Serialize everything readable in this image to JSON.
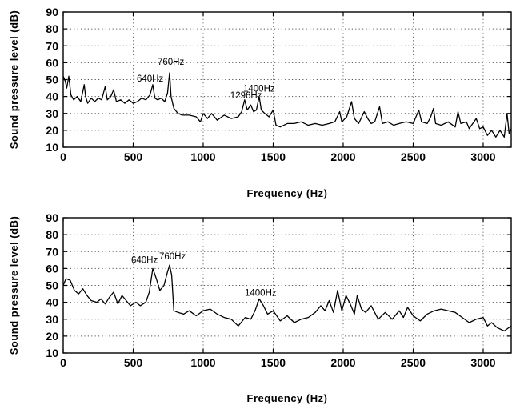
{
  "chart_data": [
    {
      "type": "line",
      "xlabel": "Frequency (Hz)",
      "ylabel": "Sound pressure level (dB)",
      "xlim": [
        0,
        3200
      ],
      "ylim": [
        10,
        90
      ],
      "xticks": [
        0,
        500,
        1000,
        1500,
        2000,
        2500,
        3000
      ],
      "yticks": [
        10,
        20,
        30,
        40,
        50,
        60,
        70,
        80,
        90
      ],
      "grid": true,
      "annotations": [
        {
          "text": "760Hz",
          "x": 760,
          "y": 55
        },
        {
          "text": "640Hz",
          "x": 640,
          "y": 47
        },
        {
          "text": "1400Hz",
          "x": 1400,
          "y": 40
        },
        {
          "text": "1296Hz",
          "x": 1296,
          "y": 38
        }
      ],
      "series": [
        {
          "values": [
            [
              0,
              52
            ],
            [
              15,
              49
            ],
            [
              25,
              45
            ],
            [
              40,
              52
            ],
            [
              55,
              41
            ],
            [
              75,
              38
            ],
            [
              100,
              40
            ],
            [
              125,
              37
            ],
            [
              150,
              47
            ],
            [
              160,
              40
            ],
            [
              175,
              36
            ],
            [
              200,
              39
            ],
            [
              225,
              37
            ],
            [
              250,
              39
            ],
            [
              275,
              38
            ],
            [
              300,
              46
            ],
            [
              315,
              38
            ],
            [
              340,
              40
            ],
            [
              360,
              44
            ],
            [
              380,
              37
            ],
            [
              410,
              38
            ],
            [
              440,
              36
            ],
            [
              470,
              38
            ],
            [
              500,
              36
            ],
            [
              530,
              37
            ],
            [
              560,
              39
            ],
            [
              590,
              38
            ],
            [
              620,
              41
            ],
            [
              640,
              47
            ],
            [
              655,
              39
            ],
            [
              675,
              38
            ],
            [
              700,
              39
            ],
            [
              725,
              37
            ],
            [
              745,
              42
            ],
            [
              760,
              54
            ],
            [
              770,
              40
            ],
            [
              790,
              33
            ],
            [
              820,
              30
            ],
            [
              850,
              29
            ],
            [
              900,
              29
            ],
            [
              950,
              28
            ],
            [
              980,
              25
            ],
            [
              1000,
              30
            ],
            [
              1030,
              27
            ],
            [
              1060,
              30
            ],
            [
              1100,
              26
            ],
            [
              1150,
              29
            ],
            [
              1200,
              27
            ],
            [
              1250,
              28
            ],
            [
              1275,
              31
            ],
            [
              1296,
              38
            ],
            [
              1315,
              32
            ],
            [
              1340,
              35
            ],
            [
              1360,
              31
            ],
            [
              1380,
              32
            ],
            [
              1400,
              40
            ],
            [
              1415,
              32
            ],
            [
              1440,
              30
            ],
            [
              1470,
              28
            ],
            [
              1500,
              32
            ],
            [
              1520,
              23
            ],
            [
              1550,
              22
            ],
            [
              1600,
              24
            ],
            [
              1650,
              24
            ],
            [
              1700,
              25
            ],
            [
              1750,
              23
            ],
            [
              1800,
              24
            ],
            [
              1850,
              23
            ],
            [
              1900,
              24
            ],
            [
              1940,
              25
            ],
            [
              1975,
              31
            ],
            [
              1990,
              25
            ],
            [
              2025,
              28
            ],
            [
              2060,
              37
            ],
            [
              2080,
              27
            ],
            [
              2110,
              24
            ],
            [
              2150,
              31
            ],
            [
              2175,
              27
            ],
            [
              2200,
              24
            ],
            [
              2225,
              25
            ],
            [
              2260,
              34
            ],
            [
              2280,
              24
            ],
            [
              2320,
              25
            ],
            [
              2360,
              23
            ],
            [
              2400,
              24
            ],
            [
              2450,
              25
            ],
            [
              2500,
              24
            ],
            [
              2540,
              32
            ],
            [
              2560,
              25
            ],
            [
              2600,
              24
            ],
            [
              2625,
              28
            ],
            [
              2645,
              33
            ],
            [
              2660,
              24
            ],
            [
              2700,
              23
            ],
            [
              2750,
              25
            ],
            [
              2800,
              22
            ],
            [
              2820,
              31
            ],
            [
              2840,
              24
            ],
            [
              2880,
              25
            ],
            [
              2900,
              21
            ],
            [
              2950,
              27
            ],
            [
              2975,
              21
            ],
            [
              3000,
              22
            ],
            [
              3030,
              17
            ],
            [
              3060,
              20
            ],
            [
              3090,
              16
            ],
            [
              3120,
              20
            ],
            [
              3150,
              16
            ],
            [
              3170,
              30
            ],
            [
              3185,
              18
            ],
            [
              3200,
              21
            ]
          ]
        }
      ]
    },
    {
      "type": "line",
      "xlabel": "Frequency (Hz)",
      "ylabel": "Sound pressure level (dB)",
      "xlim": [
        0,
        3200
      ],
      "ylim": [
        10,
        90
      ],
      "xticks": [
        0,
        500,
        1000,
        1500,
        2000,
        2500,
        3000
      ],
      "yticks": [
        10,
        20,
        30,
        40,
        50,
        60,
        70,
        80,
        90
      ],
      "grid": true,
      "annotations": [
        {
          "text": "760Hz",
          "x": 760,
          "y": 63
        },
        {
          "text": "640Hz",
          "x": 640,
          "y": 60
        },
        {
          "text": "1400Hz",
          "x": 1400,
          "y": 42
        }
      ],
      "series": [
        {
          "values": [
            [
              0,
              50
            ],
            [
              20,
              54
            ],
            [
              50,
              53
            ],
            [
              80,
              47
            ],
            [
              110,
              45
            ],
            [
              140,
              48
            ],
            [
              170,
              44
            ],
            [
              200,
              41
            ],
            [
              240,
              40
            ],
            [
              270,
              42
            ],
            [
              300,
              39
            ],
            [
              330,
              43
            ],
            [
              360,
              46
            ],
            [
              390,
              39
            ],
            [
              420,
              44
            ],
            [
              450,
              41
            ],
            [
              480,
              38
            ],
            [
              520,
              40
            ],
            [
              550,
              38
            ],
            [
              590,
              40
            ],
            [
              615,
              46
            ],
            [
              640,
              60
            ],
            [
              665,
              54
            ],
            [
              690,
              47
            ],
            [
              720,
              50
            ],
            [
              745,
              58
            ],
            [
              760,
              62
            ],
            [
              775,
              56
            ],
            [
              790,
              35
            ],
            [
              820,
              34
            ],
            [
              860,
              33
            ],
            [
              900,
              35
            ],
            [
              950,
              32
            ],
            [
              1000,
              35
            ],
            [
              1050,
              36
            ],
            [
              1100,
              33
            ],
            [
              1150,
              31
            ],
            [
              1200,
              30
            ],
            [
              1250,
              26
            ],
            [
              1300,
              31
            ],
            [
              1340,
              30
            ],
            [
              1370,
              35
            ],
            [
              1400,
              42
            ],
            [
              1430,
              38
            ],
            [
              1460,
              33
            ],
            [
              1500,
              35
            ],
            [
              1550,
              29
            ],
            [
              1600,
              32
            ],
            [
              1650,
              28
            ],
            [
              1700,
              30
            ],
            [
              1750,
              31
            ],
            [
              1800,
              34
            ],
            [
              1840,
              38
            ],
            [
              1870,
              35
            ],
            [
              1900,
              41
            ],
            [
              1930,
              34
            ],
            [
              1960,
              47
            ],
            [
              1990,
              35
            ],
            [
              2020,
              44
            ],
            [
              2050,
              39
            ],
            [
              2080,
              33
            ],
            [
              2100,
              44
            ],
            [
              2130,
              36
            ],
            [
              2160,
              34
            ],
            [
              2200,
              38
            ],
            [
              2250,
              30
            ],
            [
              2300,
              34
            ],
            [
              2350,
              30
            ],
            [
              2400,
              35
            ],
            [
              2430,
              31
            ],
            [
              2460,
              37
            ],
            [
              2500,
              32
            ],
            [
              2550,
              29
            ],
            [
              2600,
              33
            ],
            [
              2650,
              35
            ],
            [
              2700,
              36
            ],
            [
              2750,
              35
            ],
            [
              2800,
              34
            ],
            [
              2850,
              31
            ],
            [
              2900,
              28
            ],
            [
              2950,
              30
            ],
            [
              3000,
              31
            ],
            [
              3030,
              26
            ],
            [
              3060,
              28
            ],
            [
              3100,
              25
            ],
            [
              3150,
              23
            ],
            [
              3200,
              26
            ]
          ]
        }
      ]
    }
  ]
}
